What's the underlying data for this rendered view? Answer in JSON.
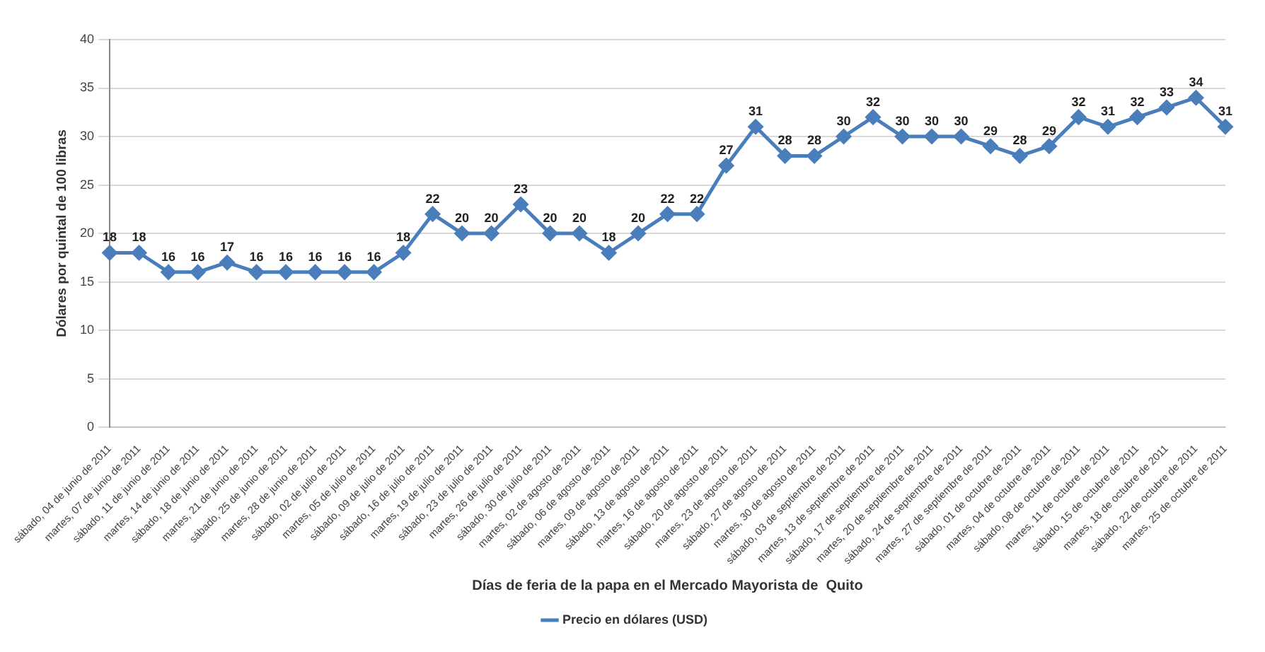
{
  "chart_data": {
    "type": "line",
    "xlabel": "Días de feria de la papa en el Mercado Mayorista de  Quito",
    "ylabel": "Dólares por quintal de 100 libras",
    "categories": [
      "sábado, 04 de junio de 2011",
      "martes, 07 de junio de 2011",
      "sábado, 11 de junio de 2011",
      "martes, 14 de junio de 2011",
      "sábado, 18 de junio de 2011",
      "martes, 21 de junio de 2011",
      "sábado, 25 de junio de 2011",
      "martes, 28 de junio de 2011",
      "sábado, 02 de julio de 2011",
      "martes, 05 de julio de 2011",
      "sábado, 09 de julio de 2011",
      "sábado, 16 de julio de 2011",
      "martes, 19 de julio de 2011",
      "sábado, 23 de julio de 2011",
      "martes, 26 de julio de 2011",
      "sábado, 30 de julio de 2011",
      "martes, 02 de agosto de 2011",
      "sábado, 06 de agosto de 2011",
      "martes, 09 de agosto de 2011",
      "sábado, 13 de agosto de 2011",
      "martes, 16 de agosto de 2011",
      "sábado, 20 de agosto de 2011",
      "martes, 23 de agosto de 2011",
      "sábado, 27 de agosto de 2011",
      "martes, 30 de agosto de 2011",
      "sábado, 03 de septiembre de 2011",
      "martes, 13 de septiembre de 2011",
      "sábado, 17 de septiembre de 2011",
      "martes, 20 de septiembre de 2011",
      "sábado, 24 de septiembre de 2011",
      "martes, 27 de septiembre de 2011",
      "sábado, 01 de octubre de 2011",
      "martes, 04 de octubre de 2011",
      "sábado, 08 de octubre de 2011",
      "martes, 11 de octubre de 2011",
      "sábado, 15 de octubre de 2011",
      "martes, 18 de octubre de 2011",
      "sábado, 22 de octubre de 2011",
      "martes, 25 de octubre de 2011"
    ],
    "series": [
      {
        "name": "Precio en dólares (USD)",
        "color": "#4a7ebb",
        "values": [
          18,
          18,
          16,
          16,
          17,
          16,
          16,
          16,
          16,
          16,
          18,
          22,
          20,
          20,
          23,
          20,
          20,
          18,
          20,
          22,
          22,
          27,
          31,
          28,
          28,
          30,
          32,
          30,
          30,
          30,
          29,
          28,
          29,
          32,
          31,
          32,
          33,
          34,
          31
        ]
      }
    ],
    "ylim": [
      0,
      40
    ],
    "yticks": [
      0,
      5,
      10,
      15,
      20,
      25,
      30,
      35,
      40
    ],
    "grid": "y",
    "legend": "bottom",
    "marker": "diamond",
    "line_style": "solid",
    "data_labels": true
  }
}
